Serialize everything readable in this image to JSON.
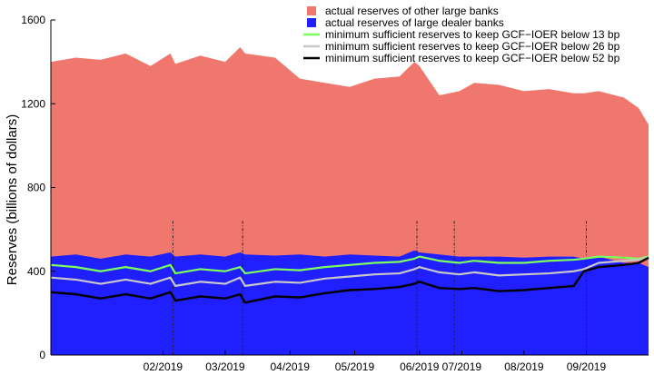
{
  "chart_data": {
    "type": "area",
    "title": "",
    "xlabel": "",
    "ylabel": "Reserves (billions of dollars)",
    "ylim": [
      0,
      1600
    ],
    "y_ticks": [
      "0",
      "400",
      "800",
      "1200",
      "1600"
    ],
    "x_ticks": [
      "02/2019",
      "03/2019",
      "04/2019",
      "05/2019",
      "06/2019",
      "07/2019",
      "08/2019",
      "09/2019"
    ],
    "x_tick_positions": [
      22.5,
      35,
      48,
      61,
      74,
      82.5,
      95,
      107.5
    ],
    "x_range": [
      0,
      120
    ],
    "legend_position": "top-right",
    "grid": false,
    "colors": {
      "other_large_banks": "#f0776e",
      "large_dealer_banks": "#1f1fff",
      "min_13bp": "#7cff5c",
      "min_26bp": "#c8c8c8",
      "min_52bp": "#000000",
      "event_line": "#222222"
    },
    "legend": [
      {
        "label": "actual reserves of other large banks",
        "kind": "patch",
        "color_key": "other_large_banks"
      },
      {
        "label": "actual reserves of large dealer banks",
        "kind": "patch",
        "color_key": "large_dealer_banks"
      },
      {
        "label": "minimum sufficient reserves to keep GCF−IOER below 13 bp",
        "kind": "line",
        "color_key": "min_13bp"
      },
      {
        "label": "minimum sufficient reserves to keep GCF−IOER below 26 bp",
        "kind": "line",
        "color_key": "min_26bp"
      },
      {
        "label": "minimum sufficient reserves to keep GCF−IOER below 52 bp",
        "kind": "line",
        "color_key": "min_52bp"
      }
    ],
    "event_lines_x": [
      24.5,
      38.5,
      73.5,
      81,
      107.5
    ],
    "event_lines_top": 640,
    "x": [
      0,
      5,
      10,
      15,
      20,
      24,
      25,
      30,
      35,
      38,
      39,
      45,
      50,
      55,
      60,
      65,
      70,
      73,
      74,
      78,
      82,
      85,
      90,
      95,
      100,
      105,
      107,
      110,
      115,
      118,
      120
    ],
    "series": [
      {
        "name": "actual reserves of other large banks",
        "role": "area-total",
        "values": [
          1400,
          1420,
          1410,
          1440,
          1380,
          1440,
          1390,
          1430,
          1400,
          1470,
          1440,
          1420,
          1320,
          1300,
          1280,
          1320,
          1330,
          1400,
          1380,
          1240,
          1260,
          1300,
          1290,
          1260,
          1270,
          1250,
          1250,
          1260,
          1230,
          1180,
          1100
        ]
      },
      {
        "name": "actual reserves of large dealer banks",
        "role": "area-dealer",
        "values": [
          470,
          480,
          460,
          480,
          470,
          490,
          470,
          480,
          470,
          490,
          480,
          475,
          480,
          470,
          480,
          475,
          470,
          500,
          490,
          480,
          470,
          470,
          470,
          465,
          470,
          470,
          460,
          470,
          440,
          440,
          420
        ]
      },
      {
        "name": "minimum sufficient reserves to keep GCF−IOER below 13 bp",
        "role": "line",
        "values": [
          430,
          420,
          400,
          420,
          400,
          430,
          390,
          410,
          400,
          420,
          390,
          410,
          405,
          420,
          430,
          440,
          445,
          460,
          470,
          450,
          440,
          450,
          440,
          440,
          450,
          455,
          460,
          470,
          465,
          460,
          470
        ]
      },
      {
        "name": "minimum sufficient reserves to keep GCF−IOER below 26 bp",
        "role": "line",
        "values": [
          370,
          360,
          340,
          360,
          340,
          370,
          330,
          350,
          340,
          370,
          330,
          350,
          345,
          365,
          375,
          385,
          390,
          410,
          420,
          395,
          385,
          395,
          380,
          385,
          390,
          400,
          410,
          440,
          450,
          455,
          465
        ]
      },
      {
        "name": "minimum sufficient reserves to keep GCF−IOER below 52 bp",
        "role": "line",
        "values": [
          300,
          290,
          270,
          290,
          270,
          300,
          260,
          280,
          270,
          290,
          250,
          280,
          275,
          295,
          310,
          315,
          325,
          340,
          350,
          320,
          315,
          320,
          305,
          310,
          320,
          330,
          400,
          420,
          430,
          440,
          465
        ]
      }
    ]
  }
}
